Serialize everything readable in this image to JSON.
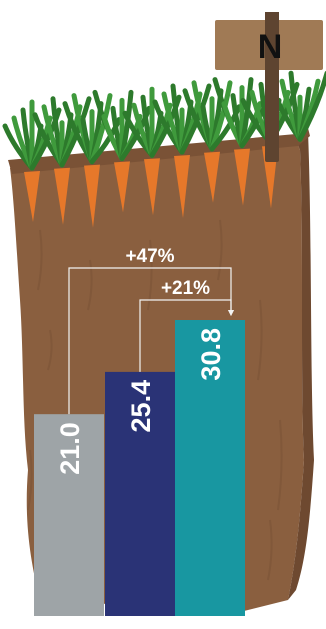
{
  "sign": {
    "label": "N"
  },
  "colors": {
    "soil": "#8a5f3f",
    "soil_dark": "#6e4930",
    "soil_top": "#7a5236",
    "carrot": "#e6782a",
    "leaf": "#3f9a3c",
    "leaf_dark": "#2d7a2c",
    "sign_board": "#a07a55",
    "sign_post": "#5e4430",
    "bracket": "#f2f2f2"
  },
  "chart_data": {
    "type": "bar",
    "title": "",
    "xlabel": "",
    "ylabel": "",
    "categories": [
      "",
      "",
      ""
    ],
    "series": [
      {
        "values": [
          21.0,
          25.4,
          30.8
        ],
        "labels": [
          "21.0",
          "25.4",
          "30.8"
        ],
        "colors": [
          "#9ea4a7",
          "#2a3376",
          "#1897a1"
        ]
      }
    ],
    "ylim": [
      0,
      30.8
    ],
    "grid": false,
    "legend": "none",
    "comparisons": [
      {
        "label": "+47%",
        "from_index": 0,
        "to_index": 2
      },
      {
        "label": "+21%",
        "from_index": 1,
        "to_index": 2
      }
    ]
  }
}
